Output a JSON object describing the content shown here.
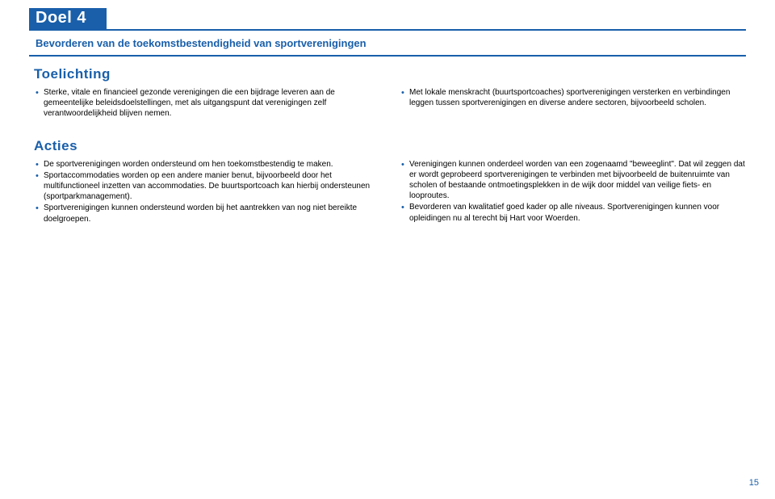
{
  "goal": {
    "label": "Doel 4",
    "subtitle": "Bevorderen van de toekomstbestendigheid van sportverenigingen"
  },
  "sections": {
    "toelichting": {
      "heading": "Toelichting",
      "left": [
        "Sterke, vitale en financieel gezonde verenigingen die een bijdrage leveren aan de gemeentelijke beleidsdoelstellingen, met als uitgangspunt dat verenigingen zelf verantwoordelijkheid blijven nemen."
      ],
      "right": [
        "Met lokale menskracht (buurtsportcoaches) sportverenigingen versterken en verbindingen leggen tussen sportverenigingen en diverse andere sectoren, bijvoorbeeld scholen."
      ]
    },
    "acties": {
      "heading": "Acties",
      "left": [
        "De sportverenigingen worden ondersteund om hen toekomstbestendig te maken.",
        "Sportaccommodaties worden op een andere manier benut, bijvoorbeeld door het multifunctioneel inzetten van accommodaties. De buurtsportcoach kan hierbij ondersteunen (sportparkmanagement).",
        "Sportverenigingen kunnen ondersteund worden bij het aantrekken van nog niet bereikte doelgroepen."
      ],
      "right": [
        "Verenigingen kunnen onderdeel worden van een zogenaamd \"beweeglint\". Dat wil zeggen dat er wordt geprobeerd sportverenigingen te verbinden met bijvoorbeeld de buitenruimte van scholen of bestaande ontmoetingsplekken in de wijk door middel van veilige fiets- en looproutes.",
        "Bevorderen van kwalitatief goed kader op alle niveaus. Sportverenigingen kunnen voor opleidingen nu al terecht bij Hart voor Woerden."
      ]
    }
  },
  "pagenum": "15",
  "colors": {
    "brand": "#195faa",
    "text": "#000000",
    "bg": "#ffffff"
  }
}
